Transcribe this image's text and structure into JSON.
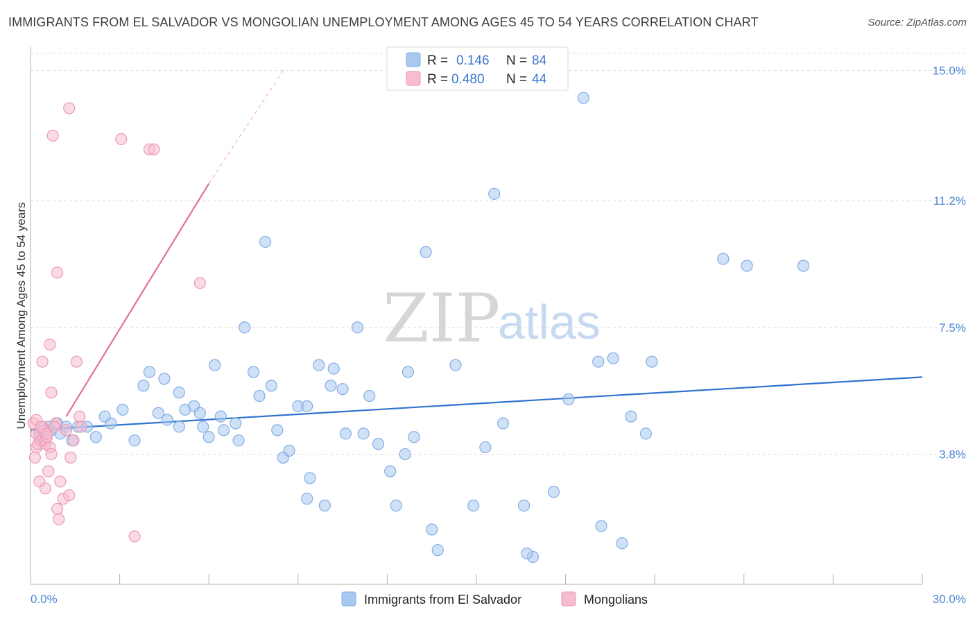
{
  "title": "IMMIGRANTS FROM EL SALVADOR VS MONGOLIAN UNEMPLOYMENT AMONG AGES 45 TO 54 YEARS CORRELATION CHART",
  "source": "Source: ZipAtlas.com",
  "watermark": {
    "zip": "ZIP",
    "atlas": "atlas"
  },
  "colors": {
    "blue": "#a9c8f0",
    "blue_stroke": "#7faee6",
    "blue_line": "#2f73cf",
    "pink": "#f6bdd0",
    "pink_stroke": "#ee98b5",
    "pink_line": "#e0709a"
  },
  "legend": {
    "rows": [
      {
        "r_label": "R =",
        "r_value": "0.146",
        "n_label": "N =",
        "n_value": "84"
      },
      {
        "r_label": "R =",
        "r_value": "0.480",
        "n_label": "N =",
        "n_value": "44"
      }
    ]
  },
  "chart_data": {
    "type": "scatter",
    "title": "IMMIGRANTS FROM EL SALVADOR VS MONGOLIAN UNEMPLOYMENT AMONG AGES 45 TO 54 YEARS CORRELATION CHART",
    "xlabel": "",
    "ylabel": "Unemployment Among Ages 45 to 54 years",
    "xlim": [
      0,
      30
    ],
    "ylim": [
      0,
      15.5
    ],
    "x_tick_labels": [
      "0.0%",
      "30.0%"
    ],
    "y_ticks": [
      3.8,
      7.5,
      11.2,
      15.0
    ],
    "y_tick_labels": [
      "3.8%",
      "7.5%",
      "11.2%",
      "15.0%"
    ],
    "grid": true,
    "legend_position": "top-center",
    "series": [
      {
        "name": "Immigrants from El Salvador",
        "color": "#a9c8f0",
        "trend": {
          "x": [
            0,
            30
          ],
          "y": [
            4.5,
            6.05
          ]
        },
        "points": [
          [
            0.3,
            4.4
          ],
          [
            0.5,
            4.5
          ],
          [
            0.4,
            4.3
          ],
          [
            0.7,
            4.5
          ],
          [
            0.9,
            4.7
          ],
          [
            1.0,
            4.4
          ],
          [
            1.2,
            4.6
          ],
          [
            1.4,
            4.2
          ],
          [
            1.6,
            4.6
          ],
          [
            1.9,
            4.6
          ],
          [
            2.2,
            4.3
          ],
          [
            2.7,
            4.7
          ],
          [
            2.5,
            4.9
          ],
          [
            3.1,
            5.1
          ],
          [
            3.5,
            4.2
          ],
          [
            3.8,
            5.8
          ],
          [
            4.0,
            6.2
          ],
          [
            4.3,
            5.0
          ],
          [
            4.5,
            6.0
          ],
          [
            4.6,
            4.8
          ],
          [
            5.0,
            4.6
          ],
          [
            5.0,
            5.6
          ],
          [
            5.2,
            5.1
          ],
          [
            5.5,
            5.2
          ],
          [
            5.7,
            5.0
          ],
          [
            5.8,
            4.6
          ],
          [
            6.0,
            4.3
          ],
          [
            6.2,
            6.4
          ],
          [
            6.4,
            4.9
          ],
          [
            6.5,
            4.5
          ],
          [
            6.9,
            4.7
          ],
          [
            7.0,
            4.2
          ],
          [
            7.2,
            7.5
          ],
          [
            7.5,
            6.2
          ],
          [
            7.7,
            5.5
          ],
          [
            7.9,
            10.0
          ],
          [
            8.1,
            5.8
          ],
          [
            8.3,
            4.5
          ],
          [
            8.5,
            3.7
          ],
          [
            8.7,
            3.9
          ],
          [
            9.0,
            5.2
          ],
          [
            9.3,
            5.2
          ],
          [
            9.4,
            3.1
          ],
          [
            9.3,
            2.5
          ],
          [
            9.7,
            6.4
          ],
          [
            9.9,
            2.3
          ],
          [
            10.1,
            5.8
          ],
          [
            10.2,
            6.3
          ],
          [
            10.5,
            5.7
          ],
          [
            10.6,
            4.4
          ],
          [
            11.0,
            7.5
          ],
          [
            11.2,
            4.4
          ],
          [
            11.4,
            5.5
          ],
          [
            11.7,
            4.1
          ],
          [
            12.1,
            3.3
          ],
          [
            12.3,
            2.3
          ],
          [
            12.6,
            3.8
          ],
          [
            12.7,
            6.2
          ],
          [
            12.9,
            4.3
          ],
          [
            13.3,
            9.7
          ],
          [
            13.5,
            1.6
          ],
          [
            13.7,
            1.0
          ],
          [
            14.3,
            6.4
          ],
          [
            14.9,
            2.3
          ],
          [
            15.3,
            4.0
          ],
          [
            15.6,
            11.4
          ],
          [
            15.9,
            4.7
          ],
          [
            16.6,
            2.3
          ],
          [
            16.9,
            0.8
          ],
          [
            16.7,
            0.9
          ],
          [
            17.6,
            2.7
          ],
          [
            18.1,
            5.4
          ],
          [
            18.6,
            14.2
          ],
          [
            19.2,
            1.7
          ],
          [
            19.1,
            6.5
          ],
          [
            19.6,
            6.6
          ],
          [
            19.9,
            1.2
          ],
          [
            20.2,
            4.9
          ],
          [
            20.7,
            4.4
          ],
          [
            20.9,
            6.5
          ],
          [
            23.3,
            9.5
          ],
          [
            24.1,
            9.3
          ],
          [
            26.0,
            9.3
          ],
          [
            0.6,
            4.6
          ]
        ]
      },
      {
        "name": "Mongolians",
        "color": "#f6bdd0",
        "trend": {
          "x": [
            0,
            6.0
          ],
          "y": [
            3.9,
            11.7
          ],
          "dashed_to": {
            "x": 8.5,
            "y": 15.0
          }
        },
        "points": [
          [
            0.1,
            4.7
          ],
          [
            0.15,
            3.7
          ],
          [
            0.2,
            4.0
          ],
          [
            0.25,
            4.1
          ],
          [
            0.3,
            4.3
          ],
          [
            0.2,
            4.4
          ],
          [
            0.35,
            4.2
          ],
          [
            0.4,
            4.6
          ],
          [
            0.45,
            4.5
          ],
          [
            0.5,
            4.1
          ],
          [
            0.3,
            3.0
          ],
          [
            0.4,
            6.5
          ],
          [
            0.5,
            4.2
          ],
          [
            0.6,
            3.3
          ],
          [
            0.5,
            2.8
          ],
          [
            0.55,
            4.3
          ],
          [
            0.65,
            4.0
          ],
          [
            0.7,
            3.8
          ],
          [
            0.7,
            5.6
          ],
          [
            0.65,
            7.0
          ],
          [
            0.75,
            13.1
          ],
          [
            0.9,
            9.1
          ],
          [
            0.85,
            4.7
          ],
          [
            0.9,
            2.2
          ],
          [
            0.95,
            1.9
          ],
          [
            1.0,
            3.0
          ],
          [
            1.1,
            2.5
          ],
          [
            1.2,
            4.5
          ],
          [
            1.3,
            2.6
          ],
          [
            1.3,
            13.9
          ],
          [
            1.35,
            3.7
          ],
          [
            1.45,
            4.2
          ],
          [
            1.55,
            6.5
          ],
          [
            1.65,
            4.9
          ],
          [
            1.7,
            4.6
          ],
          [
            3.05,
            13.0
          ],
          [
            3.5,
            1.4
          ],
          [
            4.0,
            12.7
          ],
          [
            4.15,
            12.7
          ],
          [
            5.7,
            8.8
          ],
          [
            0.2,
            4.8
          ],
          [
            0.35,
            4.6
          ],
          [
            0.55,
            4.4
          ],
          [
            0.8,
            4.6
          ]
        ]
      }
    ]
  }
}
